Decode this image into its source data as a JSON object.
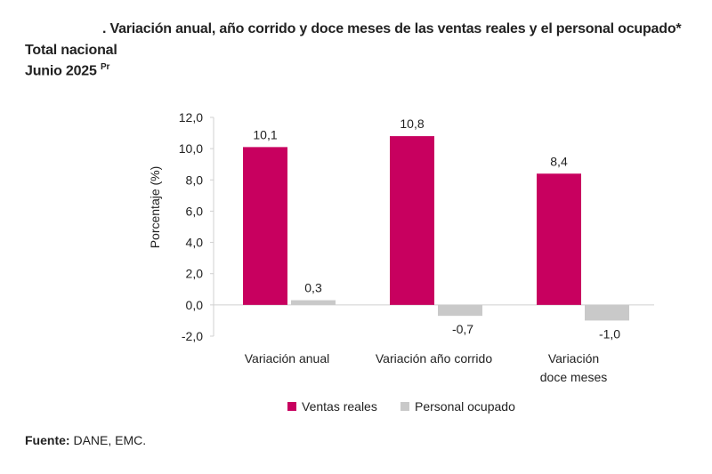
{
  "header": {
    "title": ". Variación anual, año corrido y doce meses de las ventas reales y el personal ocupado*",
    "subtitle1": "Total nacional",
    "subtitle2": "Junio 2025",
    "subtitle2_sup": "Pr"
  },
  "source": {
    "label": "Fuente:",
    "text": " DANE, EMC."
  },
  "chart_data": {
    "type": "bar",
    "categories": [
      [
        "Variación anual"
      ],
      [
        "Variación año corrido"
      ],
      [
        "Variación",
        "doce meses"
      ]
    ],
    "series": [
      {
        "name": "Ventas reales",
        "values": [
          10.1,
          10.8,
          8.4
        ],
        "labels": [
          "10,1",
          "10,8",
          "8,4"
        ],
        "color": "#C8005F"
      },
      {
        "name": "Personal ocupado",
        "values": [
          0.3,
          -0.7,
          -1.0
        ],
        "labels": [
          "0,3",
          "-0,7",
          "-1,0"
        ],
        "color": "#C9C9C9"
      }
    ],
    "ylabel": "Porcentaje (%)",
    "ylim": [
      -2,
      12
    ],
    "yticks": [
      12,
      10,
      8,
      6,
      4,
      2,
      0,
      -2
    ],
    "ytick_labels": [
      "12,0",
      "10,0",
      "8,0",
      "6,0",
      "4,0",
      "2,0",
      "0,0",
      "-2,0"
    ],
    "grid": false,
    "legend": "bottom"
  }
}
